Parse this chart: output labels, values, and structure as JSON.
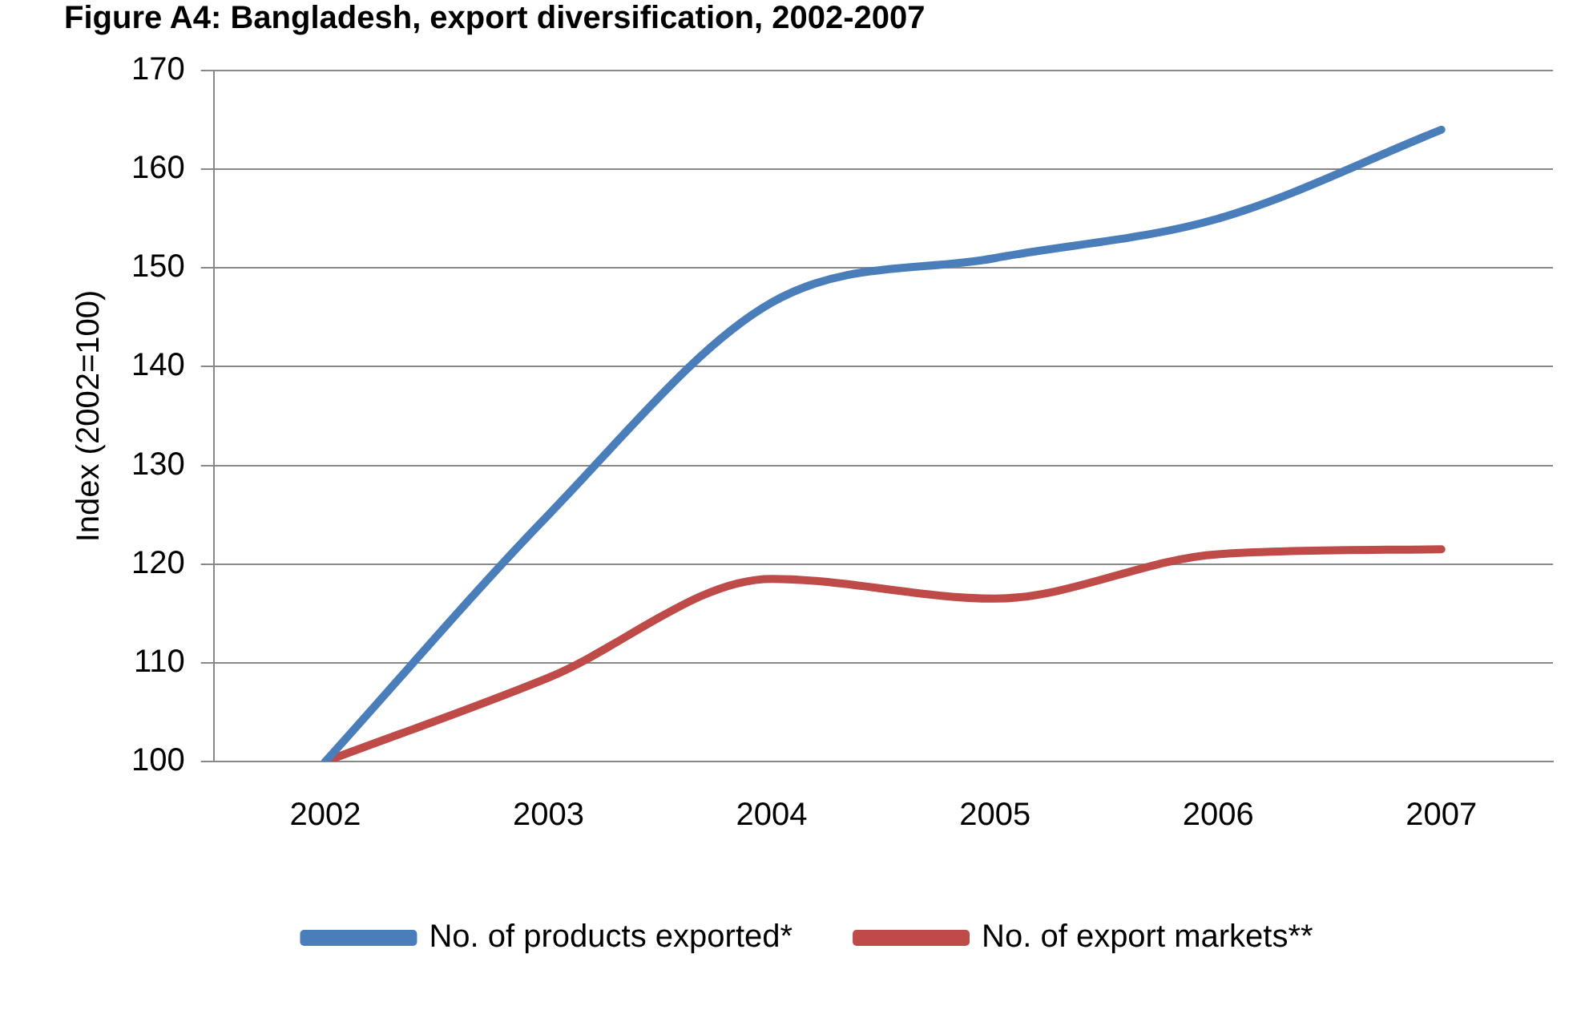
{
  "chart_data": {
    "type": "line",
    "title": "Figure A4: Bangladesh, export diversification, 2002-2007",
    "ylabel": "Index (2002=100)",
    "categories": [
      "2002",
      "2003",
      "2004",
      "2005",
      "2006",
      "2007"
    ],
    "series": [
      {
        "name": "No. of products exported*",
        "color": "#4a7ebb",
        "values": [
          100,
          125,
          146.5,
          151,
          155,
          164
        ]
      },
      {
        "name": "No. of export markets**",
        "color": "#be4b48",
        "values": [
          100,
          108.5,
          118.5,
          116.5,
          121,
          121.5
        ]
      }
    ],
    "ylim": [
      100,
      170
    ],
    "yticks": [
      100,
      110,
      120,
      130,
      140,
      150,
      160,
      170
    ],
    "grid": "y",
    "legend": "bottom",
    "marker": "none",
    "line_style": "solid"
  }
}
